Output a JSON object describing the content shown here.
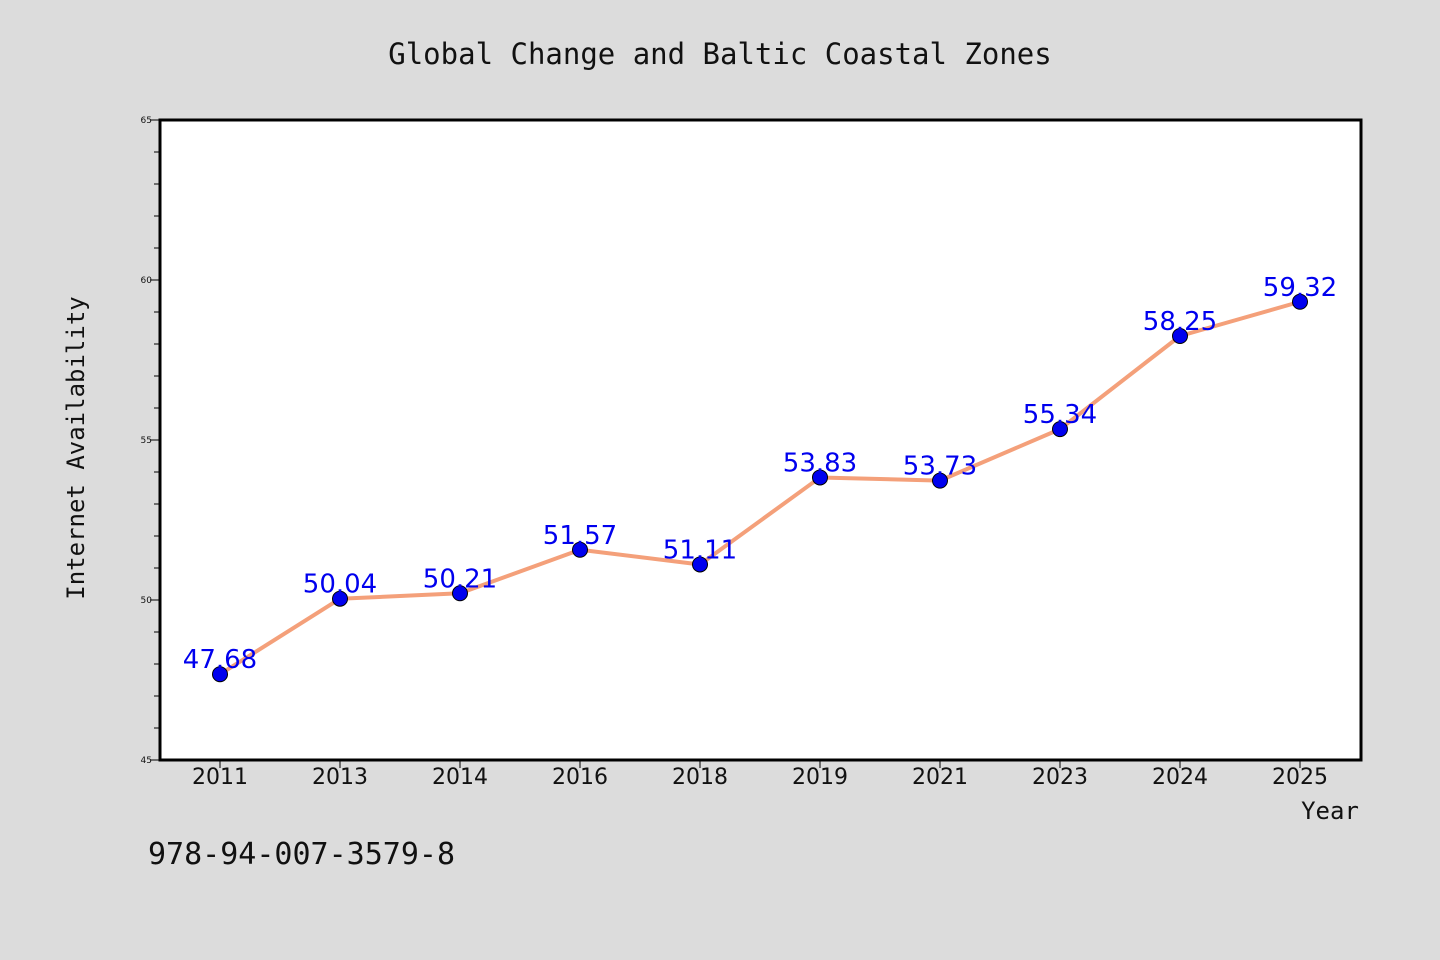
{
  "chart_data": {
    "type": "line",
    "title": "Global Change and Baltic Coastal Zones",
    "xlabel": "Year",
    "ylabel": "Internet Availability",
    "categories": [
      "2011",
      "2013",
      "2014",
      "2016",
      "2018",
      "2019",
      "2021",
      "2023",
      "2024",
      "2025"
    ],
    "series": [
      {
        "values": [
          47.68,
          50.04,
          50.21,
          51.57,
          51.11,
          53.83,
          53.73,
          55.34,
          58.25,
          59.32
        ],
        "labels": [
          "47.68",
          "50.04",
          "50.21",
          "51.57",
          "51.11",
          "53.83",
          "53.73",
          "55.34",
          "58.25",
          "59.32"
        ],
        "line_color": "#f4a07a",
        "marker_color": "#0000ee",
        "label_color": "#0000ee"
      }
    ],
    "ylim": [
      45,
      65
    ],
    "yticks": [
      {
        "value": 45,
        "label": "45"
      },
      {
        "value": 50,
        "label": "50"
      },
      {
        "value": 55,
        "label": "55"
      },
      {
        "value": 60,
        "label": "60"
      },
      {
        "value": 65,
        "label": "65"
      }
    ],
    "y_minor_step": 1,
    "grid": false,
    "legend": "none"
  },
  "footer": {
    "isbn": "978-94-007-3579-8"
  },
  "colors": {
    "background": "#dcdcdc",
    "plot_background": "#ffffff",
    "axis": "#000000"
  }
}
